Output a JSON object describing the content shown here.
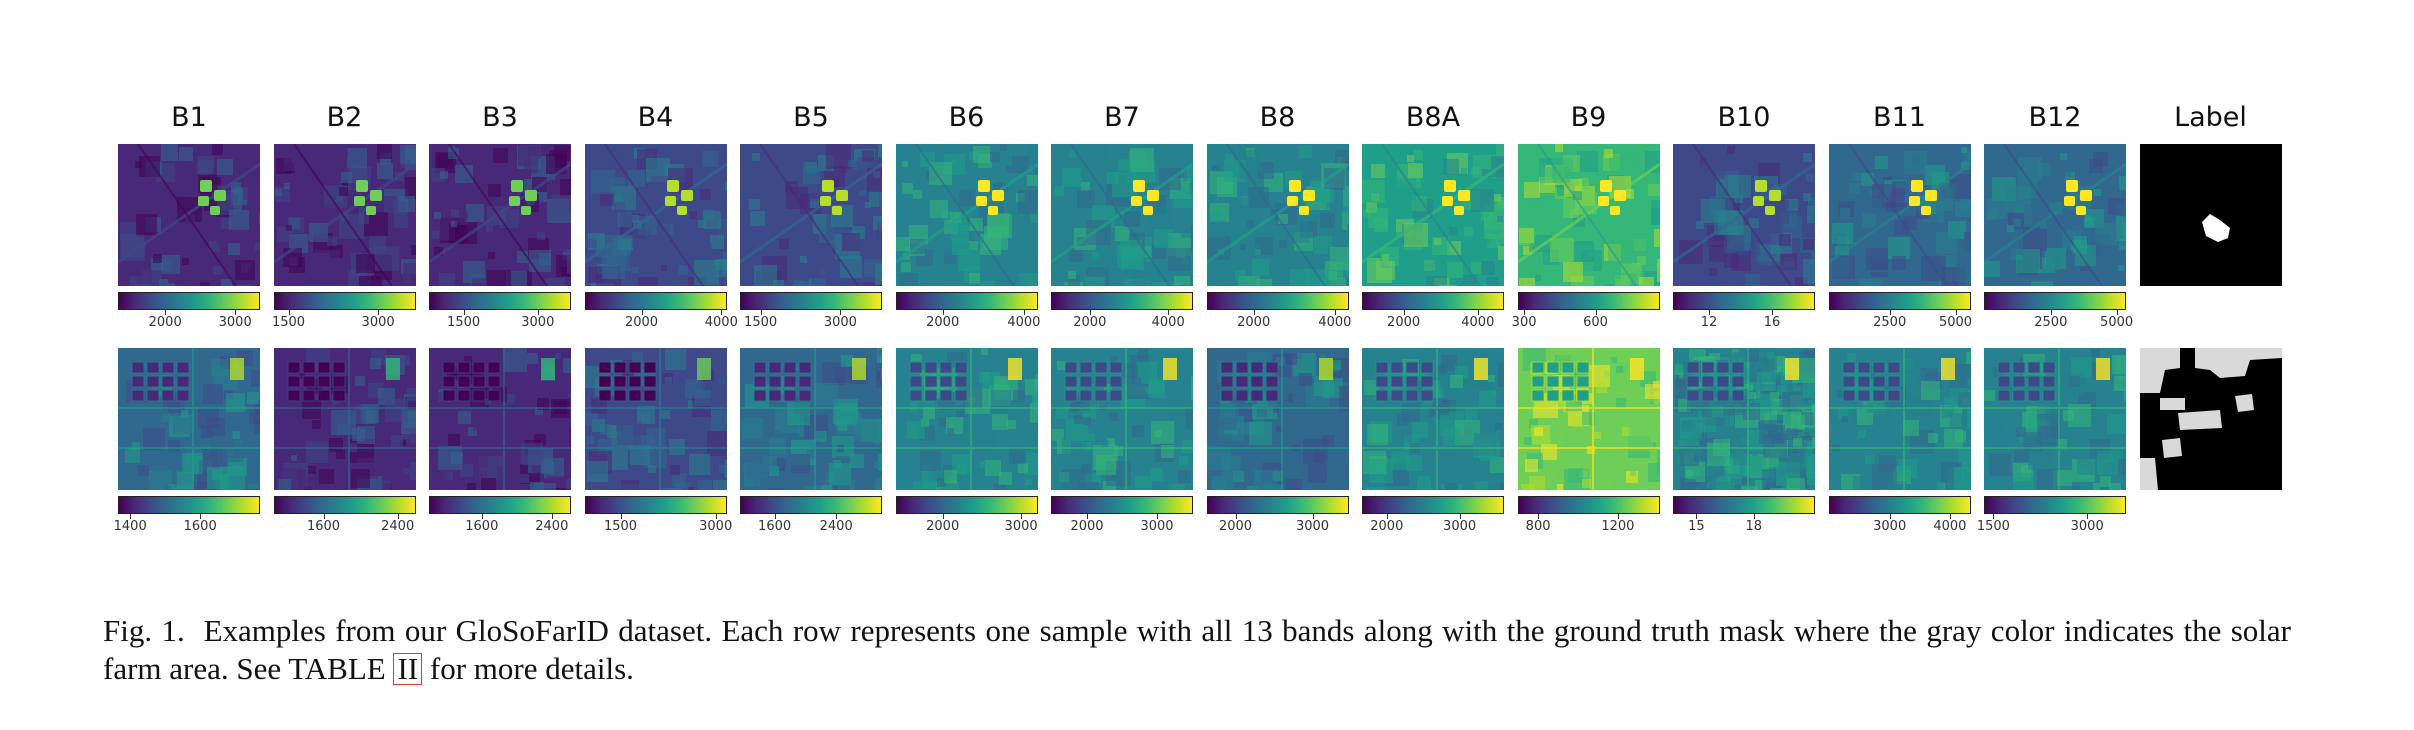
{
  "figure": {
    "bands": [
      {
        "title": "B1",
        "row1_ticks": [
          {
            "label": "2000",
            "f": 0.33
          },
          {
            "label": "3000",
            "f": 0.83
          }
        ],
        "row2_ticks": [
          {
            "label": "1400",
            "f": 0.08
          },
          {
            "label": "1600",
            "f": 0.58
          }
        ]
      },
      {
        "title": "B2",
        "row1_ticks": [
          {
            "label": "1500",
            "f": 0.1
          },
          {
            "label": "3000",
            "f": 0.74
          }
        ],
        "row2_ticks": [
          {
            "label": "1600",
            "f": 0.35
          },
          {
            "label": "2400",
            "f": 0.88
          }
        ]
      },
      {
        "title": "B3",
        "row1_ticks": [
          {
            "label": "1500",
            "f": 0.24
          },
          {
            "label": "3000",
            "f": 0.77
          }
        ],
        "row2_ticks": [
          {
            "label": "1600",
            "f": 0.37
          },
          {
            "label": "2400",
            "f": 0.87
          }
        ]
      },
      {
        "title": "B4",
        "row1_ticks": [
          {
            "label": "2000",
            "f": 0.4
          },
          {
            "label": "4000",
            "f": 0.97
          }
        ],
        "row2_ticks": [
          {
            "label": "1500",
            "f": 0.25
          },
          {
            "label": "3000",
            "f": 0.93
          }
        ]
      },
      {
        "title": "B5",
        "row1_ticks": [
          {
            "label": "1500",
            "f": 0.14
          },
          {
            "label": "3000",
            "f": 0.71
          }
        ],
        "row2_ticks": [
          {
            "label": "1600",
            "f": 0.24
          },
          {
            "label": "2400",
            "f": 0.68
          }
        ]
      },
      {
        "title": "B6",
        "row1_ticks": [
          {
            "label": "2000",
            "f": 0.33
          },
          {
            "label": "4000",
            "f": 0.91
          }
        ],
        "row2_ticks": [
          {
            "label": "2000",
            "f": 0.33
          },
          {
            "label": "3000",
            "f": 0.89
          }
        ]
      },
      {
        "title": "B7",
        "row1_ticks": [
          {
            "label": "2000",
            "f": 0.27
          },
          {
            "label": "4000",
            "f": 0.83
          }
        ],
        "row2_ticks": [
          {
            "label": "2000",
            "f": 0.25
          },
          {
            "label": "3000",
            "f": 0.75
          }
        ]
      },
      {
        "title": "B8",
        "row1_ticks": [
          {
            "label": "2000",
            "f": 0.33
          },
          {
            "label": "4000",
            "f": 0.91
          }
        ],
        "row2_ticks": [
          {
            "label": "2000",
            "f": 0.2
          },
          {
            "label": "3000",
            "f": 0.75
          }
        ]
      },
      {
        "title": "B8A",
        "row1_ticks": [
          {
            "label": "2000",
            "f": 0.29
          },
          {
            "label": "4000",
            "f": 0.82
          }
        ],
        "row2_ticks": [
          {
            "label": "2000",
            "f": 0.17
          },
          {
            "label": "3000",
            "f": 0.69
          }
        ]
      },
      {
        "title": "B9",
        "row1_ticks": [
          {
            "label": "300",
            "f": 0.04
          },
          {
            "label": "600",
            "f": 0.55
          }
        ],
        "row2_ticks": [
          {
            "label": "800",
            "f": 0.14
          },
          {
            "label": "1200",
            "f": 0.71
          }
        ]
      },
      {
        "title": "B10",
        "row1_ticks": [
          {
            "label": "12",
            "f": 0.25
          },
          {
            "label": "16",
            "f": 0.7
          }
        ],
        "row2_ticks": [
          {
            "label": "15",
            "f": 0.16
          },
          {
            "label": "18",
            "f": 0.57
          }
        ]
      },
      {
        "title": "B11",
        "row1_ticks": [
          {
            "label": "2500",
            "f": 0.43
          },
          {
            "label": "5000",
            "f": 0.9
          }
        ],
        "row2_ticks": [
          {
            "label": "3000",
            "f": 0.43
          },
          {
            "label": "4000",
            "f": 0.86
          }
        ]
      },
      {
        "title": "B12",
        "row1_ticks": [
          {
            "label": "2500",
            "f": 0.47
          },
          {
            "label": "5000",
            "f": 0.94
          }
        ],
        "row2_ticks": [
          {
            "label": "1500",
            "f": 0.06
          },
          {
            "label": "3000",
            "f": 0.73
          }
        ]
      }
    ],
    "label_title": "Label",
    "colormap": [
      "#440154",
      "#482878",
      "#3e4989",
      "#31688e",
      "#26828e",
      "#1f9e89",
      "#35b779",
      "#6ece58",
      "#b5de2b",
      "#fde725"
    ],
    "mask_colors": {
      "background": "#000000",
      "solar_farm": "#d9d9d9",
      "row1_blob": "#ffffff"
    }
  },
  "caption": {
    "fig_label": "Fig. 1.",
    "text_before": "Examples from our GloSoFarID dataset. Each row represents one sample with all 13 bands along with the ground truth mask where the gray color indicates the solar farm area. See TABLE",
    "ref": "II",
    "text_after": "for more details."
  }
}
